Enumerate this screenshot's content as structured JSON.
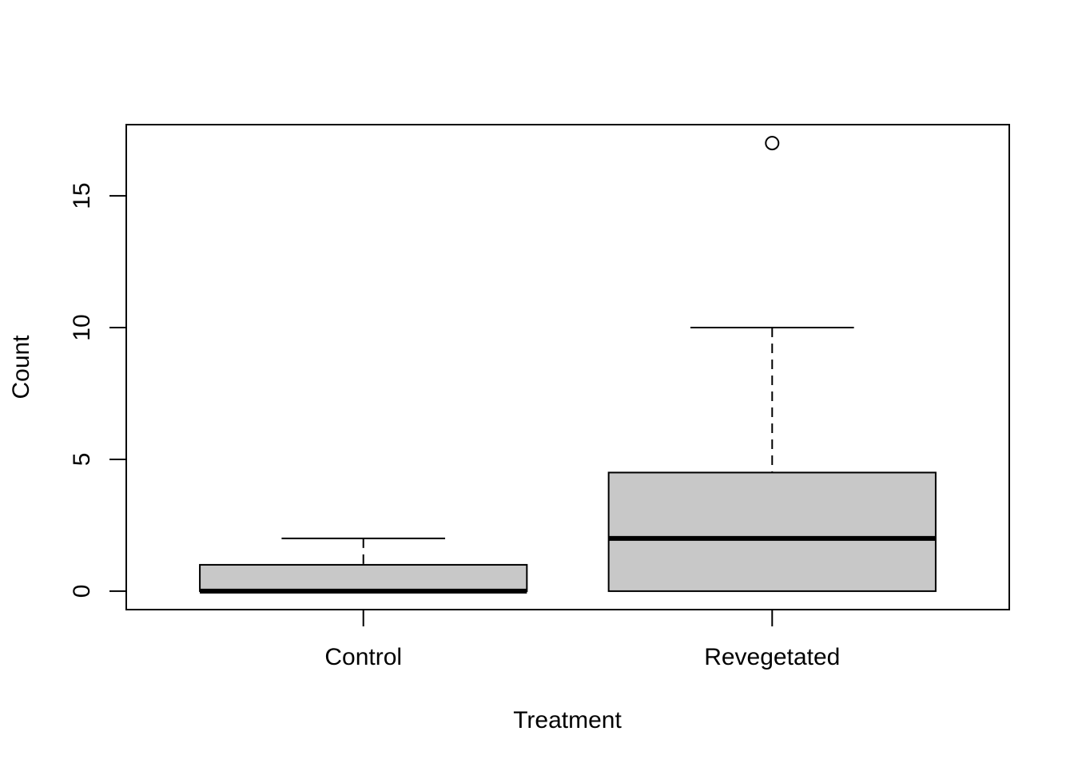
{
  "chart_data": {
    "type": "boxplot",
    "title": "",
    "xlabel": "Treatment",
    "ylabel": "Count",
    "categories": [
      "Control",
      "Revegetated"
    ],
    "yticks": [
      0,
      5,
      10,
      15
    ],
    "ylim": [
      -0.7,
      17.7
    ],
    "xlim": [
      0.42,
      2.58
    ],
    "box_width": 0.8,
    "staple_width": 0.4,
    "legend": "none",
    "grid": "off",
    "groups": [
      {
        "label": "Control",
        "position": 1,
        "whisker_low": 0,
        "q1": 0,
        "median": 0,
        "q3": 1,
        "whisker_high": 2,
        "outliers": []
      },
      {
        "label": "Revegetated",
        "position": 2,
        "whisker_low": 0,
        "q1": 0,
        "median": 2,
        "q3": 4.5,
        "whisker_high": 10,
        "outliers": [
          17
        ]
      }
    ],
    "colors": {
      "box_fill": "#c8c8c8",
      "line": "#000000",
      "background": "#ffffff"
    }
  }
}
